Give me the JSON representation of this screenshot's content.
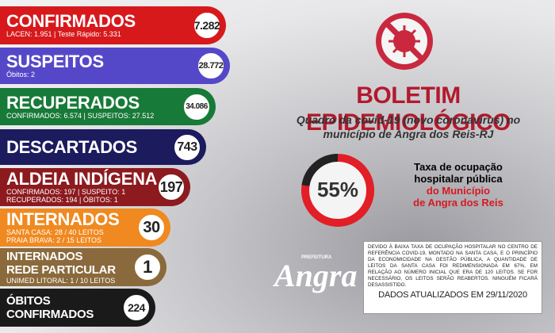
{
  "cards": [
    {
      "title": [
        "CONFIRMADOS"
      ],
      "lines": [
        "LACEN: 1.951 | Teste Rápido: 5.331"
      ],
      "badge": "7.282"
    },
    {
      "title": [
        "SUSPEITOS"
      ],
      "lines": [
        "Óbitos: 2"
      ],
      "badge": "28.772"
    },
    {
      "title": [
        "RECUPERADOS"
      ],
      "lines": [
        "CONFIRMADOS: 6.574 | SUSPEITOS: 27.512"
      ],
      "badge": "34.086"
    },
    {
      "title": [
        "DESCARTADOS"
      ],
      "lines": [],
      "badge": "743"
    },
    {
      "title": [
        "ALDEIA INDÍGENA"
      ],
      "lines": [
        "CONFIRMADOS: 197 | SUSPEITO: 1",
        "RECUPERADOS: 194 | ÓBITOS: 1"
      ],
      "badge": "197"
    },
    {
      "title": [
        "INTERNADOS"
      ],
      "lines": [
        "SANTA CASA: 28 / 40 LEITOS",
        "PRAIA BRAVA: 2 / 15 LEITOS"
      ],
      "badge": "30"
    },
    {
      "title": [
        "INTERNADOS",
        "REDE PARTICULAR"
      ],
      "lines": [
        "UNIMED LITORAL: 1 / 10 LEITOS"
      ],
      "badge": "1"
    },
    {
      "title": [
        "ÓBITOS",
        "CONFIRMADOS"
      ],
      "lines": [],
      "badge": "224"
    }
  ],
  "header": {
    "title": "BOLETIM EPIDEMIOLÓGICO",
    "subtitle": [
      "Quadro da covid-19 (novo coronavírus) no",
      "município de Angra dos Reis-RJ"
    ]
  },
  "occupancy": {
    "rate": "55%",
    "caption": [
      "Taxa de ocupação",
      "hospitalar pública"
    ],
    "caption_highlight": [
      "do Município",
      "de Angra dos Reis"
    ]
  },
  "logo": {
    "small": "PREFEITURA",
    "name": "Angra"
  },
  "notice": {
    "text": "DEVIDO À BAIXA TAXA DE OCUPAÇÃO HOSPITALAR NO CENTRO DE REFERÊNCIA COVID-19, MONTADO NA SANTA CASA, E O PRINCÍPIO DA ECONOMICIDADE NA GESTÃO PÚBLICA, A QUANTIDADE DE LEITOS DA SANTA CASA FOI REDIMENSIONADA EM 67%, EM RELAÇÃO AO NÚMERO INICIAL QUE ERA DE 120 LEITOS. SE FOR NECESSÁRIO, OS LEITOS SERÃO REABERTOS. NINGUÉM FICARÁ DESASSISTIDO.",
    "updated": "DADOS ATUALIZADOS EM 29/11/2020"
  }
}
